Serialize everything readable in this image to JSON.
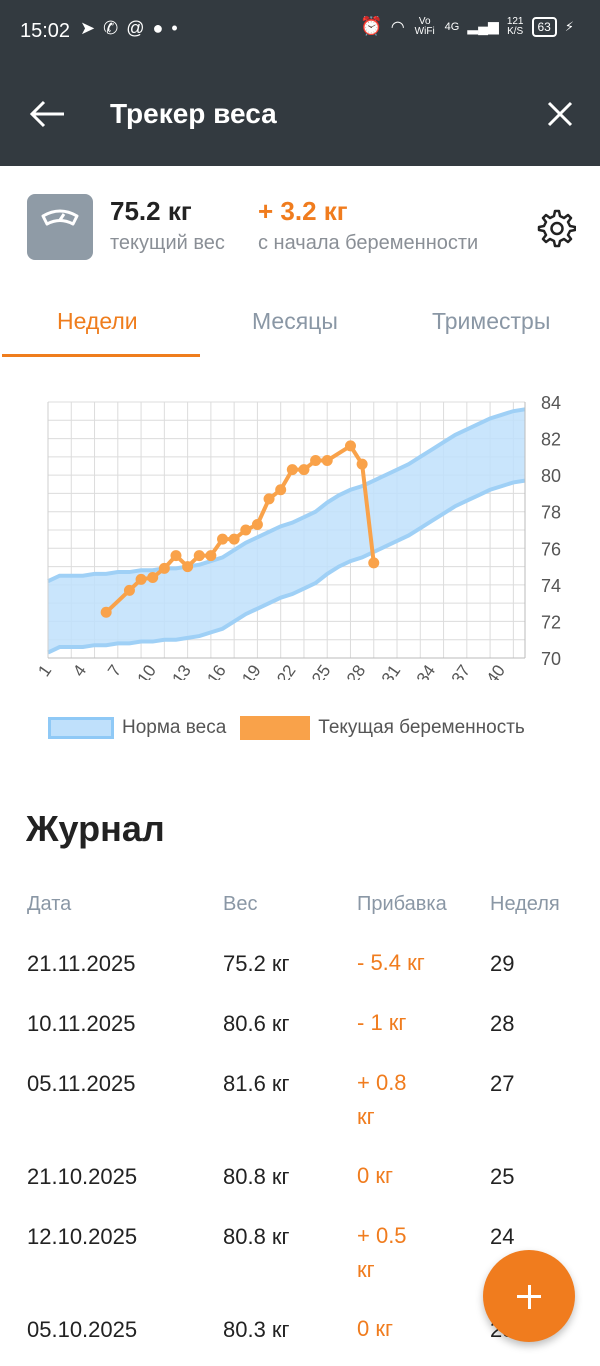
{
  "status_bar": {
    "time": "15:02",
    "net_label": "Vo WiFi",
    "net_type": "4G",
    "speed_value": "121",
    "speed_unit": "K/S",
    "battery": "63"
  },
  "toolbar": {
    "title": "Трекер веса"
  },
  "summary": {
    "current_value": "75.2 кг",
    "current_label": "текущий вес",
    "gain_value": "+ 3.2 кг",
    "gain_label": "с начала беременности"
  },
  "tabs": [
    {
      "label": "Недели",
      "active": true
    },
    {
      "label": "Месяцы",
      "active": false
    },
    {
      "label": "Триместры",
      "active": false
    }
  ],
  "chart_data": {
    "type": "line",
    "x_ticks": [
      "1",
      "4",
      "7",
      "10",
      "13",
      "16",
      "19",
      "22",
      "25",
      "28",
      "31",
      "34",
      "37",
      "40"
    ],
    "y_ticks": [
      "84",
      "82",
      "80",
      "78",
      "76",
      "74",
      "72",
      "70"
    ],
    "xlim": [
      1,
      42
    ],
    "ylim": [
      70,
      84
    ],
    "grid": true,
    "norm_band": {
      "name": "Норма веса",
      "weeks": [
        1,
        2,
        3,
        4,
        5,
        6,
        7,
        8,
        9,
        10,
        11,
        12,
        13,
        14,
        15,
        16,
        17,
        18,
        19,
        20,
        21,
        22,
        23,
        24,
        25,
        26,
        27,
        28,
        29,
        30,
        31,
        32,
        33,
        34,
        35,
        36,
        37,
        38,
        39,
        40,
        41,
        42
      ],
      "upper": [
        74.2,
        74.5,
        74.5,
        74.5,
        74.6,
        74.6,
        74.7,
        74.7,
        74.8,
        74.8,
        74.9,
        74.9,
        75.0,
        75.1,
        75.3,
        75.5,
        75.9,
        76.3,
        76.6,
        76.9,
        77.2,
        77.4,
        77.7,
        78.0,
        78.5,
        78.9,
        79.2,
        79.4,
        79.7,
        80.0,
        80.3,
        80.6,
        81.0,
        81.4,
        81.8,
        82.2,
        82.5,
        82.8,
        83.1,
        83.3,
        83.5,
        83.6
      ],
      "lower": [
        70.3,
        70.6,
        70.6,
        70.6,
        70.7,
        70.7,
        70.8,
        70.8,
        70.9,
        70.9,
        71.0,
        71.0,
        71.1,
        71.2,
        71.4,
        71.6,
        72.0,
        72.4,
        72.7,
        73.0,
        73.3,
        73.5,
        73.8,
        74.1,
        74.6,
        75.0,
        75.3,
        75.5,
        75.8,
        76.1,
        76.4,
        76.7,
        77.1,
        77.5,
        77.9,
        78.3,
        78.6,
        78.9,
        79.2,
        79.4,
        79.6,
        79.7
      ]
    },
    "series": [
      {
        "name": "Текущая беременность",
        "x": [
          6,
          8,
          9,
          10,
          11,
          12,
          13,
          14,
          15,
          16,
          17,
          18,
          19,
          20,
          21,
          22,
          23,
          24,
          25,
          27,
          28,
          29
        ],
        "y": [
          72.5,
          73.7,
          74.3,
          74.4,
          74.9,
          75.6,
          75.0,
          75.6,
          75.6,
          76.5,
          76.5,
          77.0,
          77.3,
          78.7,
          79.2,
          80.3,
          80.3,
          80.8,
          80.8,
          81.6,
          80.6,
          75.2
        ]
      }
    ],
    "colors": {
      "band_fill": "#bfe0fb",
      "band_stroke": "#9fd0f6",
      "line": "#f9a24a",
      "grid": "#dcdcdc"
    }
  },
  "legend": {
    "norm": "Норма веса",
    "current": "Текущая беременность"
  },
  "journal": {
    "title": "Журнал",
    "headers": {
      "date": "Дата",
      "weight": "Вес",
      "gain": "Прибавка",
      "week": "Неделя"
    },
    "rows": [
      {
        "date": "21.11.2025",
        "weight": "75.2 кг",
        "gain": "- 5.4 кг",
        "week": "29"
      },
      {
        "date": "10.11.2025",
        "weight": "80.6 кг",
        "gain": "- 1 кг",
        "week": "28"
      },
      {
        "date": "05.11.2025",
        "weight": "81.6 кг",
        "gain": "+ 0.8 кг",
        "week": "27"
      },
      {
        "date": "21.10.2025",
        "weight": "80.8 кг",
        "gain": "0 кг",
        "week": "25"
      },
      {
        "date": "12.10.2025",
        "weight": "80.8 кг",
        "gain": "+ 0.5 кг",
        "week": "24"
      },
      {
        "date": "05.10.2025",
        "weight": "80.3 кг",
        "gain": "0 кг",
        "week": "23"
      }
    ]
  },
  "fab": {
    "icon": "plus-icon"
  }
}
